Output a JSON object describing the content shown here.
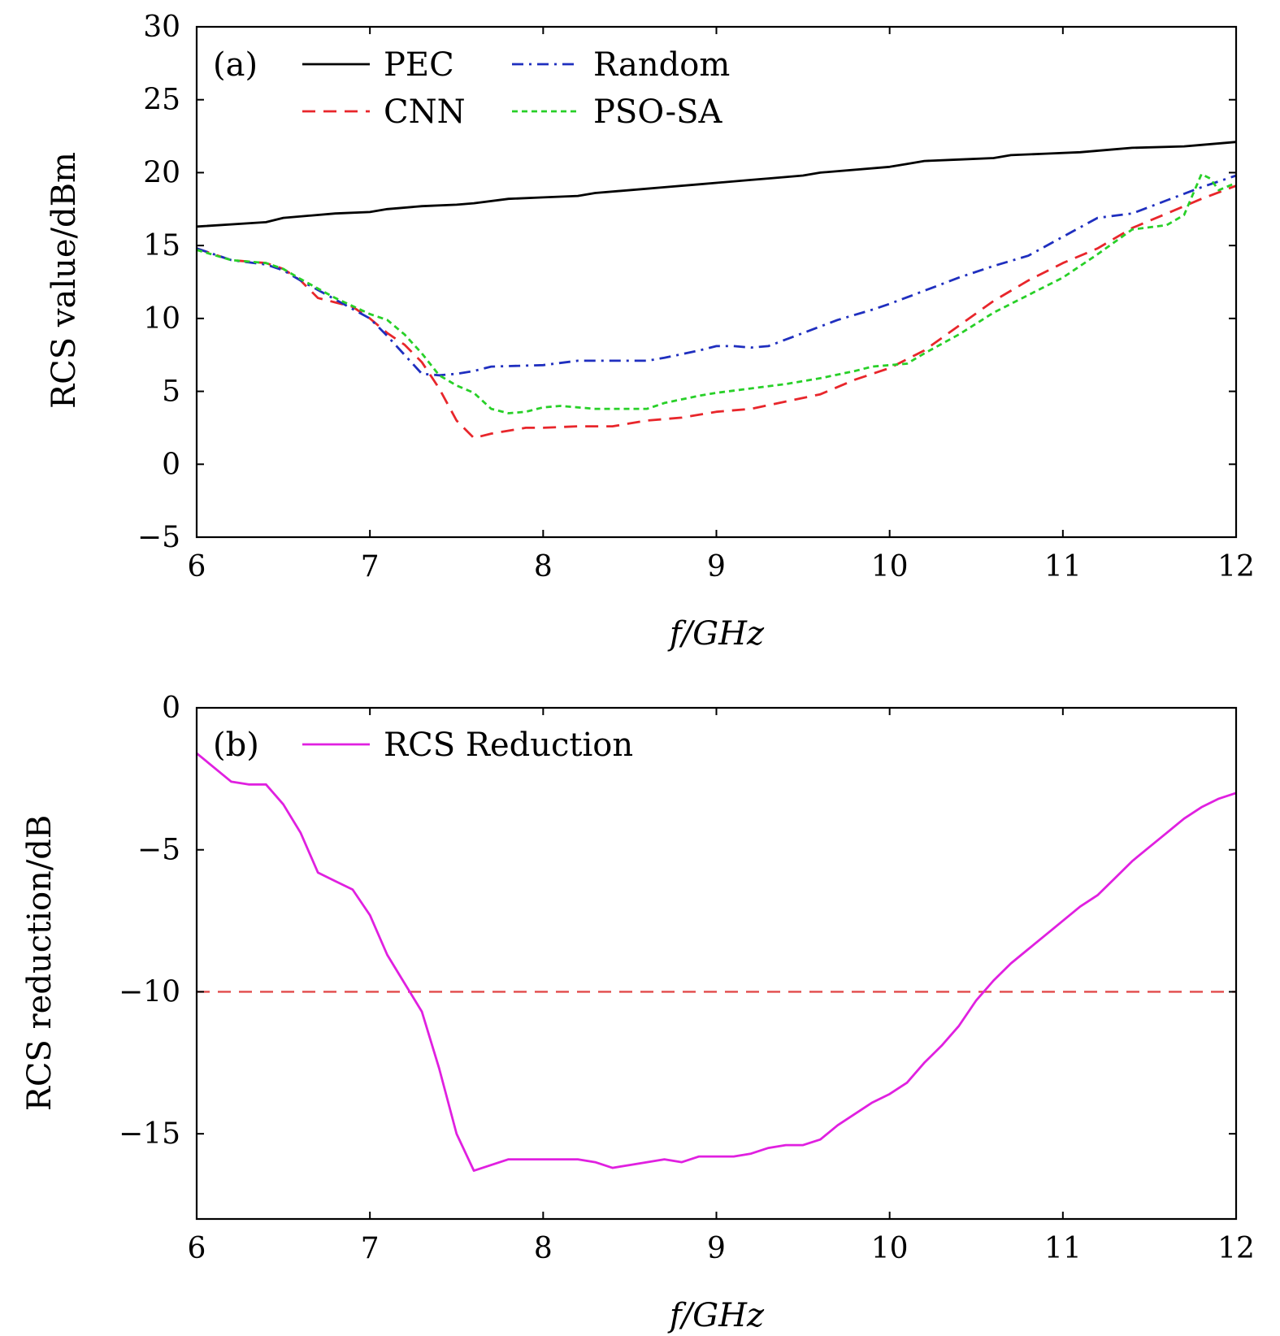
{
  "chart_data": [
    {
      "type": "line",
      "panel_label": "(a)",
      "xlabel": "f/GHz",
      "ylabel": "RCS value/dBm",
      "xlim": [
        6,
        12
      ],
      "ylim": [
        -5,
        30
      ],
      "xticks": [
        6,
        7,
        8,
        9,
        10,
        11,
        12
      ],
      "yticks": [
        -5,
        0,
        5,
        10,
        15,
        20,
        25,
        30
      ],
      "xtick_labels": [
        "6",
        "7",
        "8",
        "9",
        "10",
        "11",
        "12"
      ],
      "ytick_labels": [
        "−5",
        "0",
        "5",
        "10",
        "15",
        "20",
        "25",
        "30"
      ],
      "grid": false,
      "legend_position": "top-left",
      "series": [
        {
          "name": "PEC",
          "color": "#000000",
          "dash": "solid",
          "x": [
            6.0,
            6.4,
            6.5,
            6.8,
            7.0,
            7.1,
            7.3,
            7.5,
            7.6,
            7.8,
            8.0,
            8.2,
            8.3,
            8.6,
            8.7,
            8.9,
            9.0,
            9.2,
            9.3,
            9.5,
            9.6,
            10.0,
            10.1,
            10.2,
            10.4,
            10.6,
            10.7,
            10.9,
            11.1,
            11.3,
            11.4,
            11.7,
            11.8,
            12.0
          ],
          "y": [
            16.3,
            16.6,
            16.9,
            17.2,
            17.3,
            17.5,
            17.7,
            17.8,
            17.9,
            18.2,
            18.3,
            18.4,
            18.6,
            18.9,
            19.0,
            19.2,
            19.3,
            19.5,
            19.6,
            19.8,
            20.0,
            20.4,
            20.6,
            20.8,
            20.9,
            21.0,
            21.2,
            21.3,
            21.4,
            21.6,
            21.7,
            21.8,
            21.9,
            22.1
          ]
        },
        {
          "name": "CNN",
          "color": "#e8262b",
          "dash": "long",
          "x": [
            6.0,
            6.2,
            6.4,
            6.5,
            6.6,
            6.7,
            6.8,
            6.9,
            7.0,
            7.1,
            7.2,
            7.3,
            7.4,
            7.5,
            7.6,
            7.7,
            7.8,
            7.9,
            8.0,
            8.2,
            8.4,
            8.6,
            8.8,
            9.0,
            9.2,
            9.4,
            9.6,
            9.8,
            10.0,
            10.2,
            10.4,
            10.6,
            10.8,
            11.0,
            11.2,
            11.4,
            11.6,
            11.8,
            12.0
          ],
          "y": [
            14.8,
            14.0,
            13.8,
            13.4,
            12.6,
            11.4,
            11.1,
            10.8,
            10.0,
            9.0,
            8.2,
            7.0,
            5.2,
            3.0,
            1.8,
            2.1,
            2.3,
            2.5,
            2.5,
            2.6,
            2.6,
            3.0,
            3.2,
            3.6,
            3.8,
            4.3,
            4.8,
            5.8,
            6.6,
            7.8,
            9.5,
            11.2,
            12.6,
            13.8,
            14.8,
            16.2,
            17.2,
            18.2,
            19.1
          ]
        },
        {
          "name": "Random",
          "color": "#1f2fbf",
          "dash": "dashdot",
          "x": [
            6.0,
            6.2,
            6.4,
            6.5,
            6.6,
            6.8,
            7.0,
            7.1,
            7.2,
            7.3,
            7.4,
            7.5,
            7.6,
            7.7,
            8.0,
            8.2,
            8.4,
            8.6,
            8.7,
            8.9,
            9.0,
            9.1,
            9.2,
            9.3,
            9.5,
            9.7,
            9.9,
            10.0,
            10.2,
            10.4,
            10.6,
            10.8,
            11.0,
            11.2,
            11.4,
            11.6,
            11.8,
            12.0
          ],
          "y": [
            14.8,
            14.0,
            13.7,
            13.3,
            12.6,
            11.3,
            10.0,
            8.8,
            7.5,
            6.2,
            6.1,
            6.2,
            6.4,
            6.7,
            6.8,
            7.1,
            7.1,
            7.1,
            7.3,
            7.8,
            8.1,
            8.1,
            8.0,
            8.1,
            9.0,
            9.9,
            10.6,
            11.0,
            11.9,
            12.8,
            13.6,
            14.3,
            15.6,
            16.9,
            17.2,
            18.1,
            19.0,
            19.8
          ]
        },
        {
          "name": "PSO-SA",
          "color": "#28d028",
          "dash": "dotted",
          "x": [
            6.0,
            6.2,
            6.4,
            6.5,
            6.6,
            6.8,
            7.0,
            7.1,
            7.2,
            7.3,
            7.4,
            7.5,
            7.6,
            7.7,
            7.8,
            7.9,
            8.0,
            8.1,
            8.2,
            8.3,
            8.6,
            8.7,
            8.9,
            9.0,
            9.2,
            9.4,
            9.6,
            9.8,
            9.9,
            10.1,
            10.2,
            10.4,
            10.6,
            10.8,
            11.0,
            11.2,
            11.4,
            11.6,
            11.7,
            11.8,
            11.85,
            11.9,
            12.0
          ],
          "y": [
            14.7,
            14.0,
            13.8,
            13.4,
            12.7,
            11.4,
            10.3,
            9.9,
            8.9,
            7.6,
            6.1,
            5.4,
            4.9,
            3.8,
            3.5,
            3.6,
            3.9,
            4.0,
            3.9,
            3.8,
            3.8,
            4.2,
            4.7,
            4.9,
            5.2,
            5.5,
            5.9,
            6.4,
            6.7,
            6.9,
            7.6,
            8.9,
            10.4,
            11.6,
            12.8,
            14.4,
            16.1,
            16.4,
            17.1,
            19.9,
            19.6,
            18.8,
            19.3
          ]
        }
      ]
    },
    {
      "type": "line",
      "panel_label": "(b)",
      "xlabel": "f/GHz",
      "ylabel": "RCS reduction/dB",
      "xlim": [
        6,
        12
      ],
      "ylim": [
        -18,
        0
      ],
      "xticks": [
        6,
        7,
        8,
        9,
        10,
        11,
        12
      ],
      "yticks": [
        -15,
        -10,
        -5,
        0
      ],
      "xtick_labels": [
        "6",
        "7",
        "8",
        "9",
        "10",
        "11",
        "12"
      ],
      "ytick_labels": [
        "−15",
        "−10",
        "−5",
        "0"
      ],
      "grid": false,
      "legend_position": "top-left",
      "reference_line": {
        "y": -10,
        "color": "#e24a4a",
        "dash": "long"
      },
      "series": [
        {
          "name": "RCS Reduction",
          "color": "#e020e0",
          "dash": "solid",
          "x": [
            6.0,
            6.1,
            6.2,
            6.3,
            6.4,
            6.5,
            6.6,
            6.7,
            6.8,
            6.9,
            7.0,
            7.1,
            7.2,
            7.3,
            7.4,
            7.5,
            7.6,
            7.7,
            7.8,
            7.9,
            8.0,
            8.1,
            8.2,
            8.3,
            8.4,
            8.5,
            8.6,
            8.7,
            8.8,
            8.9,
            9.0,
            9.1,
            9.2,
            9.3,
            9.4,
            9.5,
            9.6,
            9.7,
            9.8,
            9.9,
            10.0,
            10.1,
            10.2,
            10.3,
            10.4,
            10.5,
            10.6,
            10.7,
            10.8,
            10.9,
            11.0,
            11.1,
            11.2,
            11.3,
            11.4,
            11.5,
            11.6,
            11.7,
            11.8,
            11.9,
            12.0
          ],
          "y": [
            -1.6,
            -2.1,
            -2.6,
            -2.7,
            -2.7,
            -3.4,
            -4.4,
            -5.8,
            -6.1,
            -6.4,
            -7.3,
            -8.7,
            -9.7,
            -10.7,
            -12.7,
            -15.0,
            -16.3,
            -16.1,
            -15.9,
            -15.9,
            -15.9,
            -15.9,
            -15.9,
            -16.0,
            -16.2,
            -16.1,
            -16.0,
            -15.9,
            -16.0,
            -15.8,
            -15.8,
            -15.8,
            -15.7,
            -15.5,
            -15.4,
            -15.4,
            -15.2,
            -14.7,
            -14.3,
            -13.9,
            -13.6,
            -13.2,
            -12.5,
            -11.9,
            -11.2,
            -10.3,
            -9.6,
            -9.0,
            -8.5,
            -8.0,
            -7.5,
            -7.0,
            -6.6,
            -6.0,
            -5.4,
            -4.9,
            -4.4,
            -3.9,
            -3.5,
            -3.2,
            -3.0
          ]
        }
      ]
    }
  ]
}
